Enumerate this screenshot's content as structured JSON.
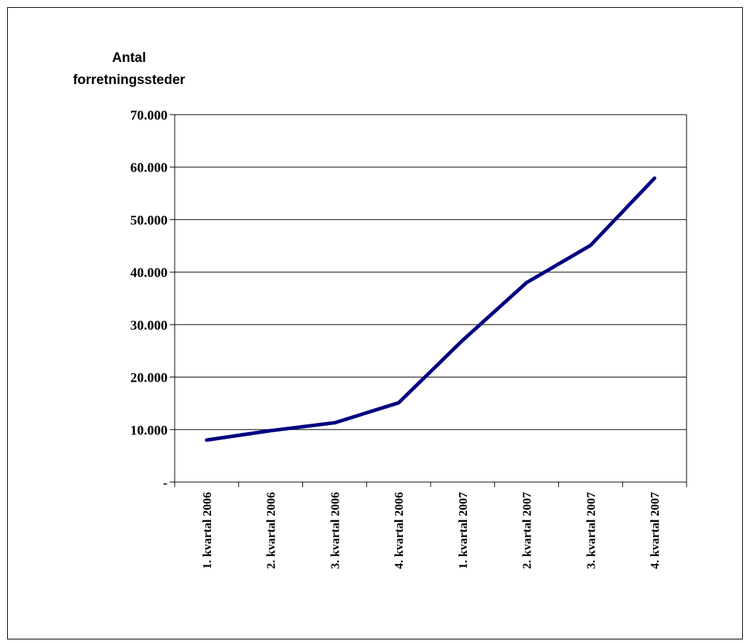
{
  "chart_data": {
    "type": "line",
    "ylabel_lines": [
      "Antal",
      "forretningssteder"
    ],
    "categories": [
      "1. kvartal 2006",
      "2. kvartal 2006",
      "3. kvartal 2006",
      "4. kvartal 2006",
      "1. kvartal 2007",
      "2. kvartal 2007",
      "3. kvartal 2007",
      "4. kvartal 2007"
    ],
    "series": [
      {
        "values": [
          8000,
          9800,
          11300,
          15100,
          27000,
          38000,
          45100,
          57900
        ],
        "color": "#000080"
      }
    ],
    "ylim": [
      0,
      70000
    ],
    "yticks": [
      0,
      10000,
      20000,
      30000,
      40000,
      50000,
      60000,
      70000
    ],
    "ytick_labels": [
      "-",
      "10.000",
      "20.000",
      "30.000",
      "40.000",
      "50.000",
      "60.000",
      "70.000"
    ],
    "grid": true
  }
}
